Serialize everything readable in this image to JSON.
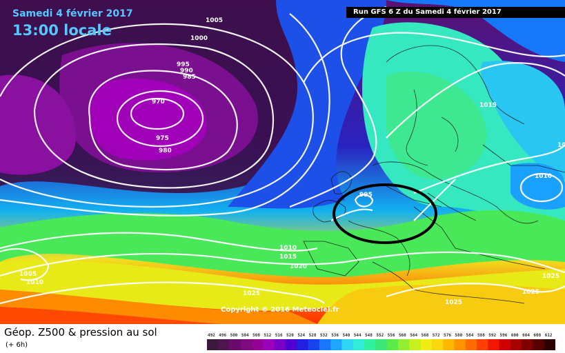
{
  "header": {
    "date": "Samedi 4 février 2017",
    "time": "13:00 locale",
    "run": "Run GFS 6 Z du Samedi 4 février 2017"
  },
  "copyright": "Copyright © 2016 Meteociel.fr",
  "footer": {
    "title": "Géop. Z500 & pression au sol",
    "subtitle": "(+ 6h)"
  },
  "isobar_labels": [
    "1005",
    "1000",
    "995",
    "990",
    "985",
    "970",
    "975",
    "980",
    "995",
    "1015",
    "1010",
    "1010",
    "1015",
    "1020",
    "1005",
    "1010",
    "1025",
    "1025",
    "1025",
    "1025",
    "10"
  ],
  "colorscale": {
    "values": [
      492,
      496,
      500,
      504,
      508,
      512,
      516,
      520,
      524,
      528,
      532,
      536,
      540,
      544,
      548,
      552,
      556,
      560,
      564,
      568,
      572,
      576,
      580,
      584,
      588,
      592,
      596,
      600,
      604,
      608,
      612
    ],
    "colors": [
      "#3a1a3a",
      "#501550",
      "#6a0a6a",
      "#800a80",
      "#950095",
      "#9c00b8",
      "#7a00c8",
      "#5000d0",
      "#2020e0",
      "#1844f0",
      "#1878ff",
      "#1ea6ff",
      "#30d4f5",
      "#30ecd8",
      "#30f0a0",
      "#3ce878",
      "#5cea48",
      "#90ef30",
      "#c8ef20",
      "#eeee10",
      "#fad810",
      "#ffb800",
      "#ff9400",
      "#ff6c00",
      "#ff4000",
      "#f01800",
      "#d00000",
      "#a80000",
      "#800000",
      "#580000",
      "#2a0000"
    ]
  },
  "circle_marker": "low-pressure-circle"
}
